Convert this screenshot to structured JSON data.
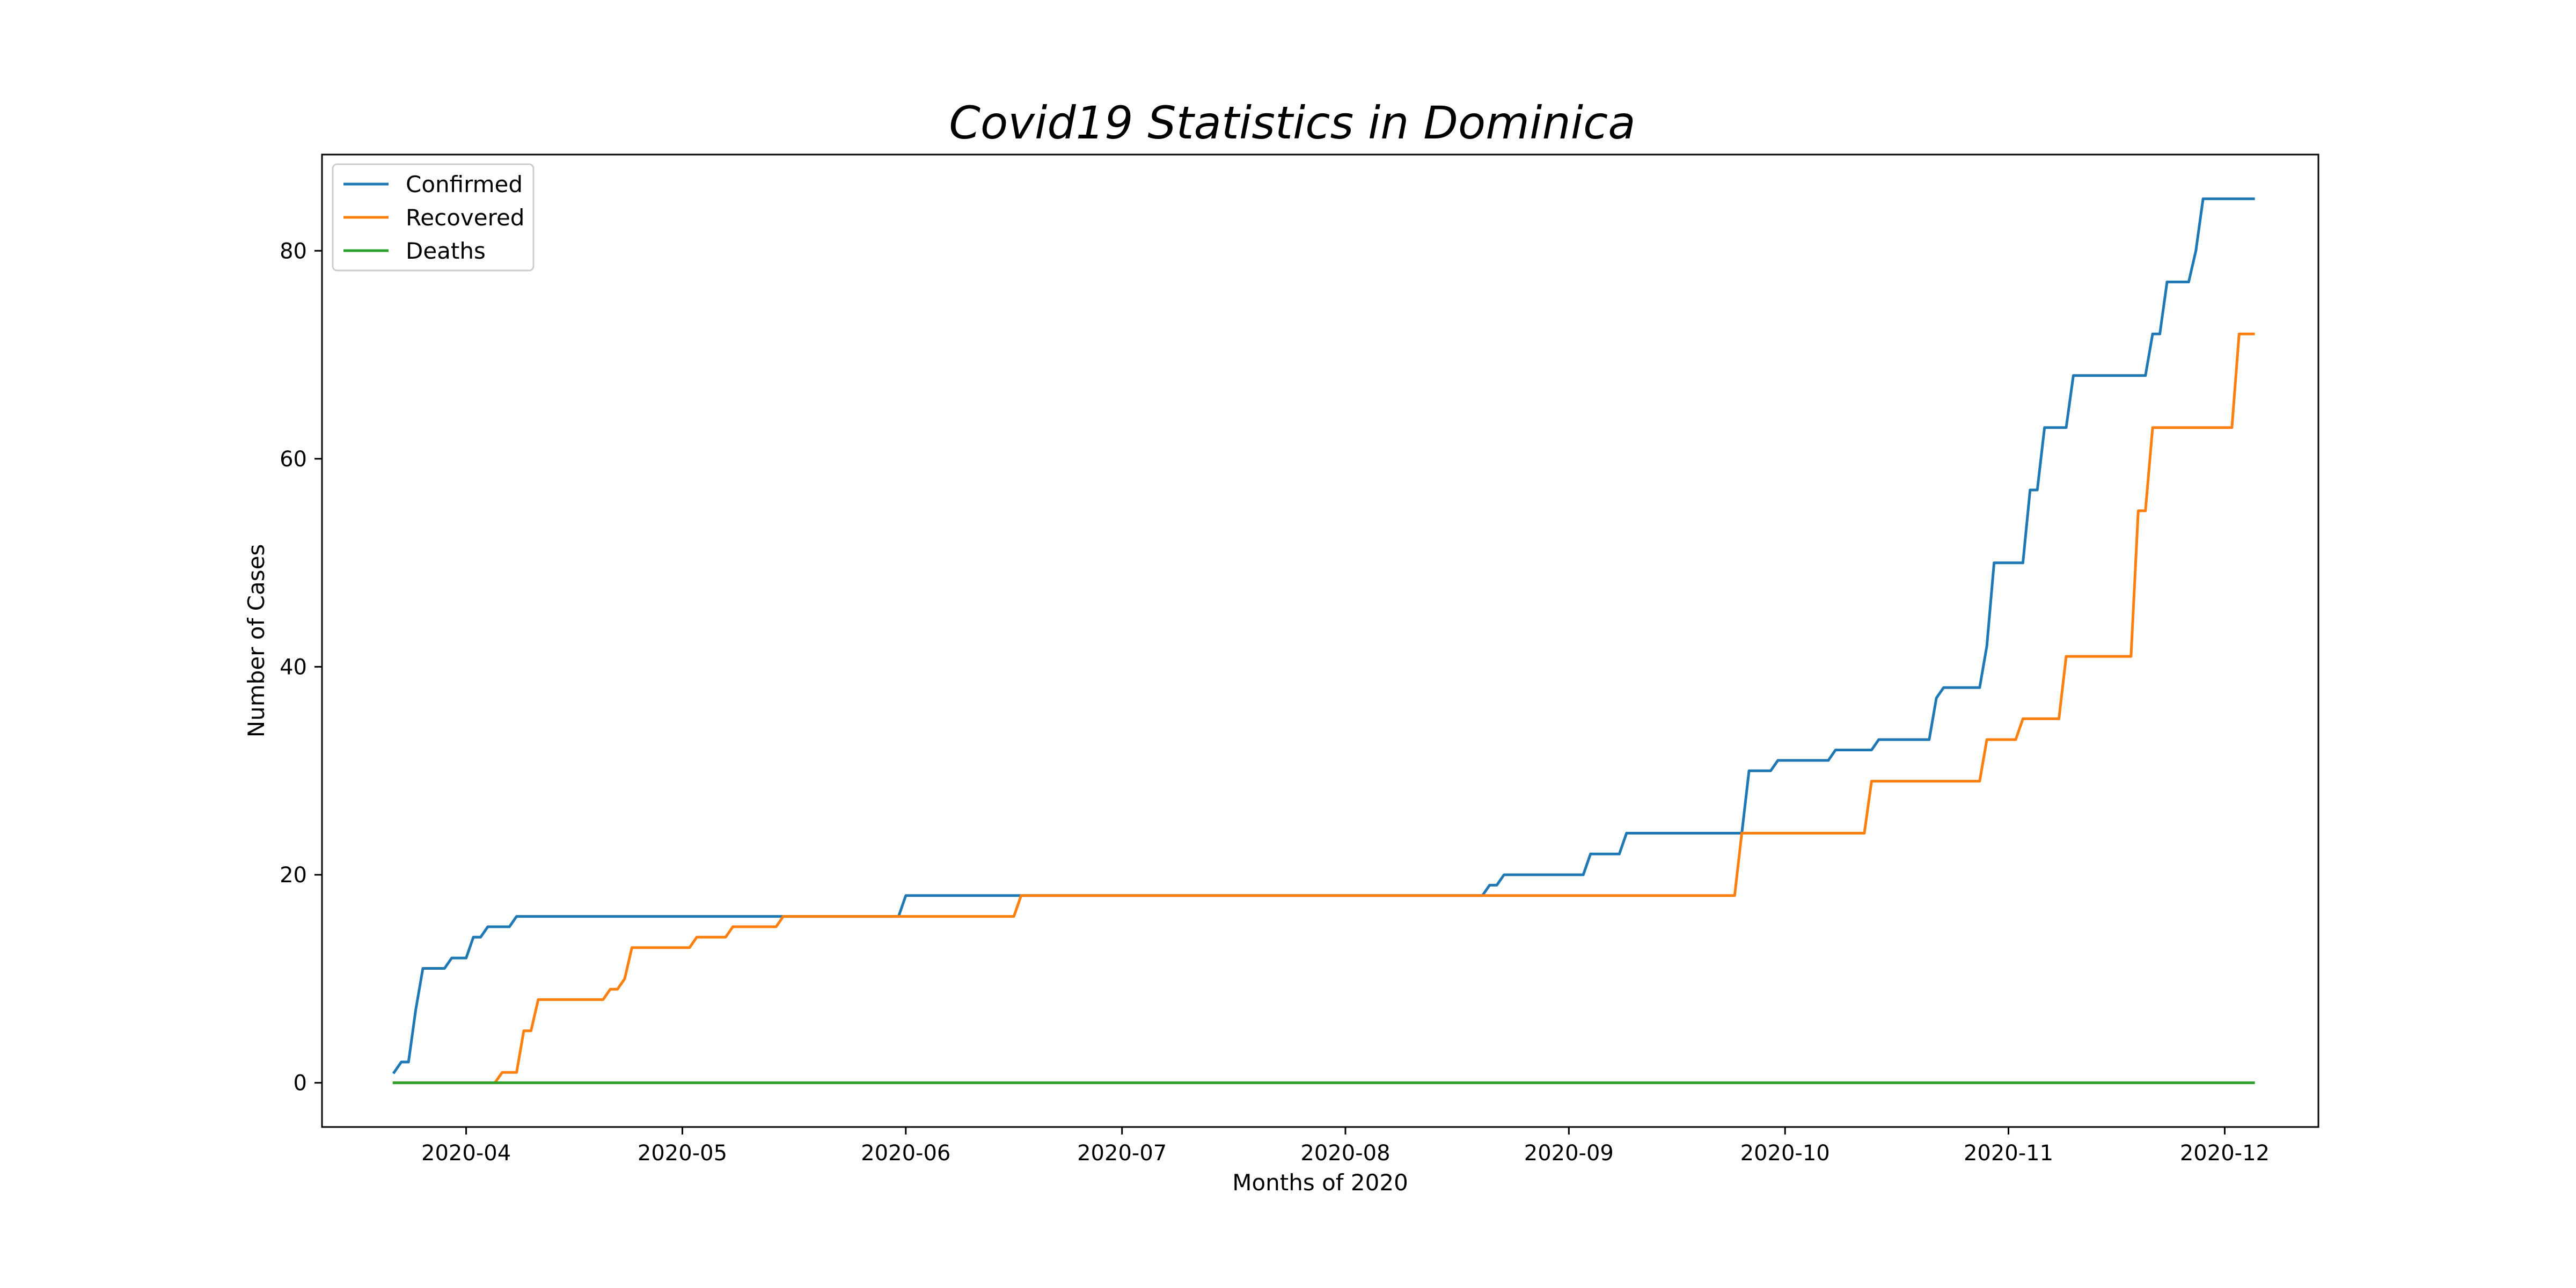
{
  "chart_data": {
    "type": "line",
    "title": "Covid19 Statistics in Dominica",
    "xlabel": "Months of 2020",
    "ylabel": "Number of Cases",
    "x_axis_type": "date",
    "xlim": [
      "2020-03-12",
      "2020-12-14"
    ],
    "ylim": [
      -4.25,
      89.25
    ],
    "x_ticks": [
      {
        "date": "2020-04-01",
        "label": "2020-04"
      },
      {
        "date": "2020-05-01",
        "label": "2020-05"
      },
      {
        "date": "2020-06-01",
        "label": "2020-06"
      },
      {
        "date": "2020-07-01",
        "label": "2020-07"
      },
      {
        "date": "2020-08-01",
        "label": "2020-08"
      },
      {
        "date": "2020-09-01",
        "label": "2020-09"
      },
      {
        "date": "2020-10-01",
        "label": "2020-10"
      },
      {
        "date": "2020-11-01",
        "label": "2020-11"
      },
      {
        "date": "2020-12-01",
        "label": "2020-12"
      }
    ],
    "y_ticks": [
      {
        "value": 0,
        "label": "0"
      },
      {
        "value": 20,
        "label": "20"
      },
      {
        "value": 40,
        "label": "40"
      },
      {
        "value": 60,
        "label": "60"
      },
      {
        "value": 80,
        "label": "80"
      }
    ],
    "grid": false,
    "legend": {
      "position": "top-left"
    },
    "series": [
      {
        "name": "Confirmed",
        "color": "#1f77b4",
        "points": [
          [
            "2020-03-22",
            1
          ],
          [
            "2020-03-23",
            2
          ],
          [
            "2020-03-24",
            2
          ],
          [
            "2020-03-25",
            7
          ],
          [
            "2020-03-26",
            11
          ],
          [
            "2020-03-29",
            11
          ],
          [
            "2020-03-30",
            12
          ],
          [
            "2020-04-01",
            12
          ],
          [
            "2020-04-02",
            14
          ],
          [
            "2020-04-03",
            14
          ],
          [
            "2020-04-04",
            15
          ],
          [
            "2020-04-07",
            15
          ],
          [
            "2020-04-08",
            16
          ],
          [
            "2020-05-31",
            16
          ],
          [
            "2020-06-01",
            18
          ],
          [
            "2020-06-17",
            18
          ],
          [
            "2020-08-20",
            18
          ],
          [
            "2020-08-21",
            19
          ],
          [
            "2020-08-22",
            19
          ],
          [
            "2020-08-23",
            20
          ],
          [
            "2020-09-03",
            20
          ],
          [
            "2020-09-04",
            22
          ],
          [
            "2020-09-08",
            22
          ],
          [
            "2020-09-09",
            24
          ],
          [
            "2020-09-25",
            24
          ],
          [
            "2020-09-26",
            30
          ],
          [
            "2020-09-29",
            30
          ],
          [
            "2020-09-30",
            31
          ],
          [
            "2020-10-07",
            31
          ],
          [
            "2020-10-08",
            32
          ],
          [
            "2020-10-13",
            32
          ],
          [
            "2020-10-14",
            33
          ],
          [
            "2020-10-21",
            33
          ],
          [
            "2020-10-22",
            37
          ],
          [
            "2020-10-23",
            38
          ],
          [
            "2020-10-28",
            38
          ],
          [
            "2020-10-29",
            42
          ],
          [
            "2020-10-30",
            50
          ],
          [
            "2020-11-03",
            50
          ],
          [
            "2020-11-04",
            57
          ],
          [
            "2020-11-05",
            57
          ],
          [
            "2020-11-06",
            63
          ],
          [
            "2020-11-09",
            63
          ],
          [
            "2020-11-10",
            68
          ],
          [
            "2020-11-20",
            68
          ],
          [
            "2020-11-21",
            72
          ],
          [
            "2020-11-22",
            72
          ],
          [
            "2020-11-23",
            77
          ],
          [
            "2020-11-26",
            77
          ],
          [
            "2020-11-27",
            80
          ],
          [
            "2020-11-28",
            85
          ],
          [
            "2020-12-05",
            85
          ]
        ]
      },
      {
        "name": "Recovered",
        "color": "#ff7f0e",
        "points": [
          [
            "2020-03-22",
            0
          ],
          [
            "2020-04-05",
            0
          ],
          [
            "2020-04-06",
            1
          ],
          [
            "2020-04-08",
            1
          ],
          [
            "2020-04-09",
            5
          ],
          [
            "2020-04-10",
            5
          ],
          [
            "2020-04-11",
            8
          ],
          [
            "2020-04-20",
            8
          ],
          [
            "2020-04-21",
            9
          ],
          [
            "2020-04-22",
            9
          ],
          [
            "2020-04-23",
            10
          ],
          [
            "2020-04-24",
            13
          ],
          [
            "2020-05-02",
            13
          ],
          [
            "2020-05-03",
            14
          ],
          [
            "2020-05-07",
            14
          ],
          [
            "2020-05-08",
            15
          ],
          [
            "2020-05-14",
            15
          ],
          [
            "2020-05-15",
            16
          ],
          [
            "2020-06-16",
            16
          ],
          [
            "2020-06-17",
            18
          ],
          [
            "2020-09-24",
            18
          ],
          [
            "2020-09-25",
            24
          ],
          [
            "2020-10-12",
            24
          ],
          [
            "2020-10-13",
            29
          ],
          [
            "2020-10-28",
            29
          ],
          [
            "2020-10-29",
            33
          ],
          [
            "2020-11-02",
            33
          ],
          [
            "2020-11-03",
            35
          ],
          [
            "2020-11-08",
            35
          ],
          [
            "2020-11-09",
            41
          ],
          [
            "2020-11-18",
            41
          ],
          [
            "2020-11-19",
            55
          ],
          [
            "2020-11-20",
            55
          ],
          [
            "2020-11-21",
            63
          ],
          [
            "2020-12-02",
            63
          ],
          [
            "2020-12-03",
            72
          ],
          [
            "2020-12-05",
            72
          ]
        ]
      },
      {
        "name": "Deaths",
        "color": "#2ca02c",
        "points": [
          [
            "2020-03-22",
            0
          ],
          [
            "2020-12-05",
            0
          ]
        ]
      }
    ]
  }
}
